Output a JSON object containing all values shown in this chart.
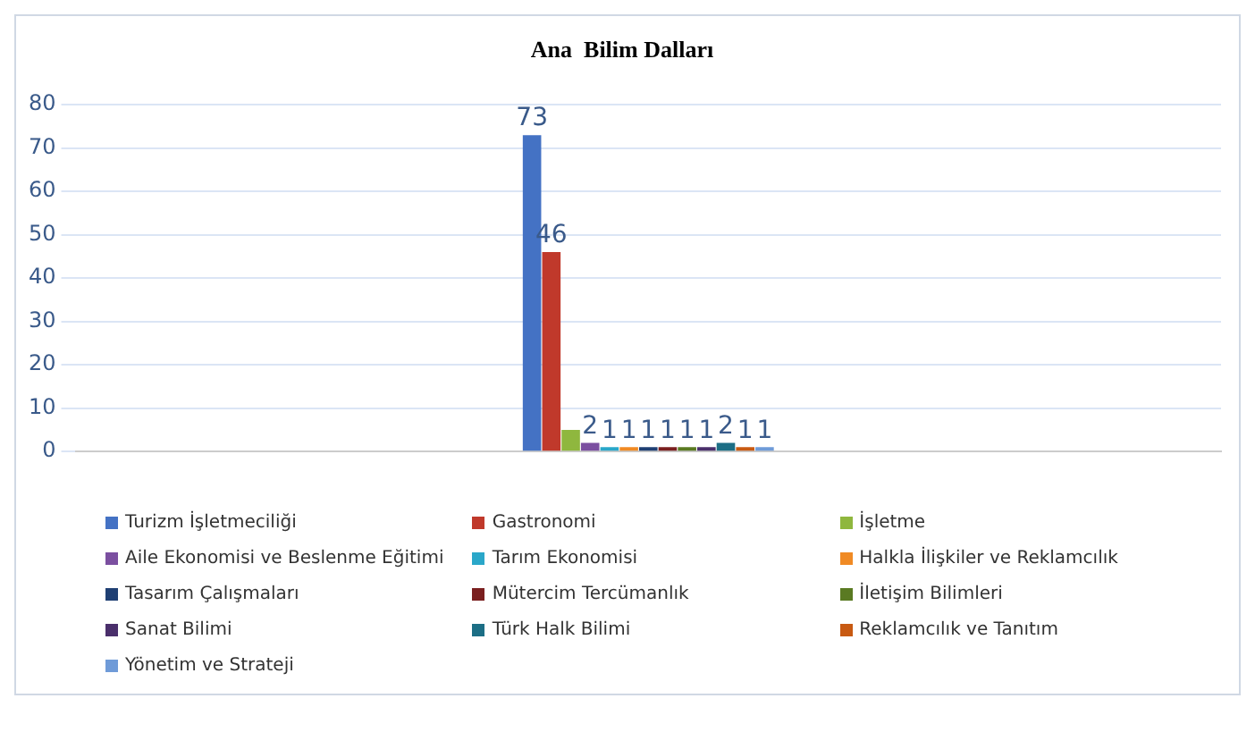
{
  "chart_data": {
    "type": "bar",
    "title": "Ana  Bilim Dalları",
    "categories": [
      null
    ],
    "series": [
      {
        "name": "Turizm İşletmeciliği",
        "color": "#4472c4",
        "values": [
          73
        ],
        "value_labels": [
          "73"
        ]
      },
      {
        "name": "Gastronomi",
        "color": "#c0392b",
        "values": [
          46
        ],
        "value_labels": [
          "46"
        ]
      },
      {
        "name": "İşletme",
        "color": "#8fb73e",
        "values": [
          5
        ],
        "value_labels": [
          null
        ]
      },
      {
        "name": "Aile Ekonomisi ve Beslenme Eğitimi",
        "color": "#7b4fa0",
        "values": [
          2
        ],
        "value_labels": [
          "2"
        ]
      },
      {
        "name": "Tarım Ekonomisi",
        "color": "#2aa7c9",
        "values": [
          1
        ],
        "value_labels": [
          "1"
        ]
      },
      {
        "name": "Halkla İlişkiler ve Reklamcılık",
        "color": "#f08a24",
        "values": [
          1
        ],
        "value_labels": [
          "1"
        ]
      },
      {
        "name": "Tasarım Çalışmaları",
        "color": "#1f3f73",
        "values": [
          1
        ],
        "value_labels": [
          "1"
        ]
      },
      {
        "name": "Mütercim Tercümanlık",
        "color": "#7a1f1f",
        "values": [
          1
        ],
        "value_labels": [
          "1"
        ]
      },
      {
        "name": "İletişim Bilimleri",
        "color": "#5a7a22",
        "values": [
          1
        ],
        "value_labels": [
          "1"
        ]
      },
      {
        "name": "Sanat Bilimi",
        "color": "#4a2f6b",
        "values": [
          1
        ],
        "value_labels": [
          "1"
        ]
      },
      {
        "name": "Türk Halk Bilimi",
        "color": "#1c6e85",
        "values": [
          2
        ],
        "value_labels": [
          "2"
        ]
      },
      {
        "name": "Reklamcılık ve Tanıtım",
        "color": "#c85a12",
        "values": [
          1
        ],
        "value_labels": [
          "1"
        ]
      },
      {
        "name": "Yönetim ve Strateji",
        "color": "#6f9bd8",
        "values": [
          1
        ],
        "value_labels": [
          "1"
        ]
      }
    ],
    "ylim": [
      0,
      80
    ],
    "yticks": [
      0,
      10,
      20,
      30,
      40,
      50,
      60,
      70,
      80
    ],
    "grid": "y",
    "legend": "bottom"
  }
}
